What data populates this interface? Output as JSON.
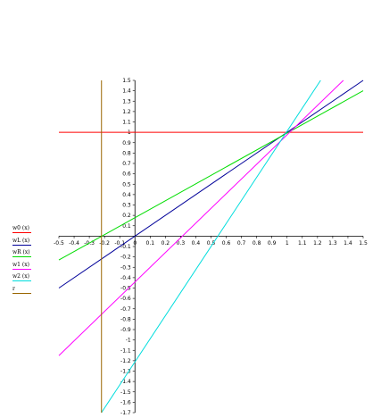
{
  "chart_data": {
    "type": "line",
    "title": "",
    "xlabel": "",
    "ylabel": "",
    "xlim": [
      -0.5,
      1.5
    ],
    "ylim": [
      -1.7,
      1.5
    ],
    "grid": false,
    "legend_position": "left",
    "x_ticks": [
      "-0.5",
      "-0.4",
      "-0.3",
      "-0.2",
      "-0.1",
      "0",
      "0.1",
      "0.2",
      "0.3",
      "0.4",
      "0.5",
      "0.6",
      "0.7",
      "0.8",
      "0.9",
      "1",
      "1.1",
      "1.2",
      "1.3",
      "1.4",
      "1.5"
    ],
    "y_ticks": [
      "1.5",
      "1.4",
      "1.3",
      "1.2",
      "1.1",
      "1",
      "0.9",
      "0.8",
      "0.7",
      "0.6",
      "0.5",
      "0.4",
      "0.3",
      "0.2",
      "0.1",
      "-0.1",
      "-0.2",
      "-0.3",
      "-0.4",
      "-0.5",
      "-0.6",
      "-0.7",
      "-0.8",
      "-0.9",
      "-1",
      "-1.1",
      "-1.2",
      "-1.3",
      "-1.4",
      "-1.5",
      "-1.6",
      "-1.7"
    ],
    "series": [
      {
        "name": "w0 (x)",
        "color": "#ff0000",
        "kind": "function",
        "points": [
          [
            -0.5,
            1.0
          ],
          [
            1.5,
            1.0
          ]
        ]
      },
      {
        "name": "wL (x)",
        "color": "#000099",
        "kind": "function",
        "points": [
          [
            -0.5,
            -0.5
          ],
          [
            1.5,
            1.5
          ]
        ]
      },
      {
        "name": "wR (x)",
        "color": "#00dd00",
        "kind": "function",
        "points": [
          [
            -0.5,
            -0.23
          ],
          [
            1.5,
            1.4
          ]
        ]
      },
      {
        "name": "w1 (x)",
        "color": "#ff00ff",
        "kind": "function",
        "points": [
          [
            -0.5,
            -1.15
          ],
          [
            1.37,
            1.5
          ]
        ]
      },
      {
        "name": "w2 (x)",
        "color": "#00dddd",
        "kind": "function",
        "points": [
          [
            -0.22,
            -1.7
          ],
          [
            1.22,
            1.5
          ]
        ]
      },
      {
        "name": "r",
        "color": "#996600",
        "kind": "vertical",
        "x": -0.22
      }
    ]
  }
}
